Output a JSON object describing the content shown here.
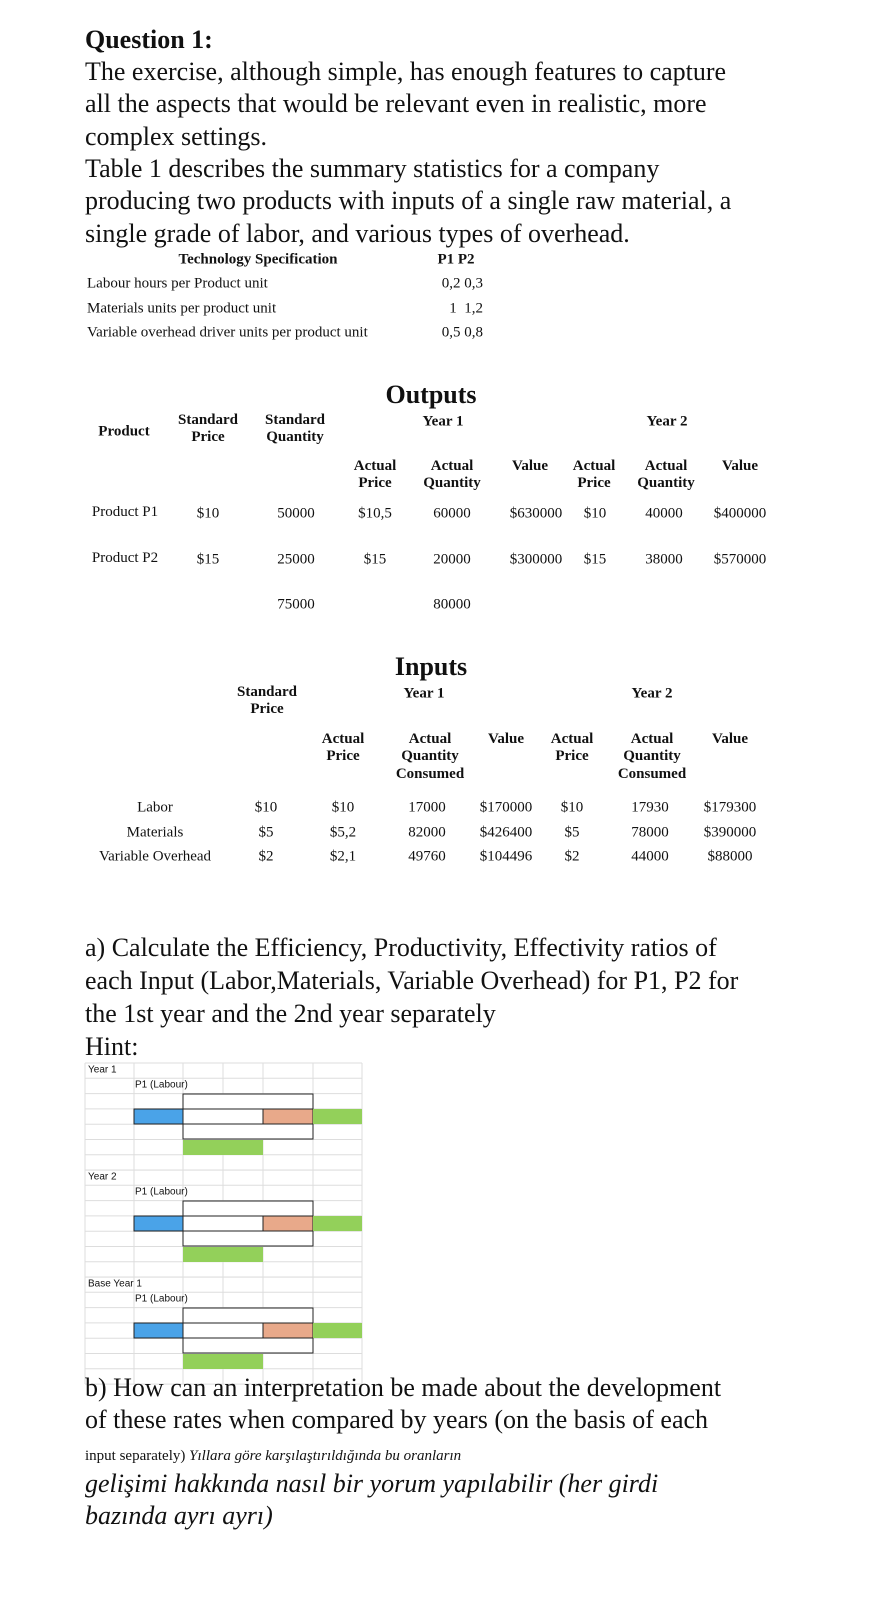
{
  "question": {
    "title": "Question 1:",
    "lines": [
      "The exercise, although simple, has enough features to capture",
      "all the aspects that would be relevant even in realistic, more",
      "complex settings.",
      "Table 1 describes the summary statistics for a company",
      "producing two products with inputs of a single raw material, a",
      "single grade of labor, and various types of overhead."
    ]
  },
  "technology_table": {
    "header": [
      "Technology Specification",
      "P1 P2"
    ],
    "rows": [
      [
        "Labour hours per Product unit",
        "0,2 0,3"
      ],
      [
        "Materials units per product unit",
        "1  1,2"
      ],
      [
        "Variable overhead driver units per product unit",
        "0,5 0,8"
      ]
    ]
  },
  "outputs": {
    "title": "Outputs",
    "headers": {
      "product": "Product",
      "standard_price": "Standard Price",
      "standard_quantity": "Standard Quantity",
      "year1": "Year 1",
      "year2": "Year 2",
      "sub": [
        "Actual Price",
        "Actual Quantity",
        "Value",
        "Actual Price",
        "Actual Quantity",
        "Value"
      ]
    },
    "rows": [
      [
        "Product P1",
        "$10",
        "50000",
        "$10,5",
        "60000",
        "$630000",
        "$10",
        "40000",
        "$400000"
      ],
      [
        "Product P2",
        "$15",
        "25000",
        "$15",
        "20000",
        "$300000",
        "$15",
        "38000",
        "$570000"
      ]
    ],
    "totals": [
      "75000",
      "80000"
    ]
  },
  "inputs": {
    "title": "Inputs",
    "headers": {
      "standard_price": "Standard Price",
      "year1": "Year 1",
      "year2": "Year 2",
      "sub": [
        "Actual Price",
        "Actual Quantity Consumed",
        "Value",
        "Actual Price",
        "Actual Quantity Consumed",
        "Value"
      ]
    },
    "rows": [
      [
        "Labor",
        "$10",
        "$10",
        "17000",
        "$170000",
        "$10",
        "17930",
        "$179300"
      ],
      [
        "Materials",
        "$5",
        "$5,2",
        "82000",
        "$426400",
        "$5",
        "78000",
        "$390000"
      ],
      [
        "Variable Overhead",
        "$2",
        "$2,1",
        "49760",
        "$104496",
        "$2",
        "44000",
        "$88000"
      ]
    ]
  },
  "part_a": {
    "lines": [
      "a) Calculate the Efficiency, Productivity, Effectivity ratios of",
      "each Input (Labor,Materials, Variable Overhead) for P1, P2 for",
      "the 1st year and the 2nd year separately"
    ],
    "hint": "Hint:"
  },
  "hint_blocks": [
    {
      "label": "Year 1",
      "sublabel": "P1 (Labour)"
    },
    {
      "label": "Year 2",
      "sublabel": "P1 (Labour)"
    },
    {
      "label": "Base Year 1",
      "sublabel": "P1 (Labour)"
    }
  ],
  "part_b": {
    "lines": [
      "b) How can an interpretation be made about the development",
      "of these rates when compared by years (on the basis of each",
      "input separately) "
    ],
    "turkish_lines": [
      "Yıllara göre karşılaştırıldığında bu oranların",
      "gelişimi hakkında nasıl bir yorum yapılabilir (her girdi",
      "bazında ayrı ayrı)"
    ]
  }
}
